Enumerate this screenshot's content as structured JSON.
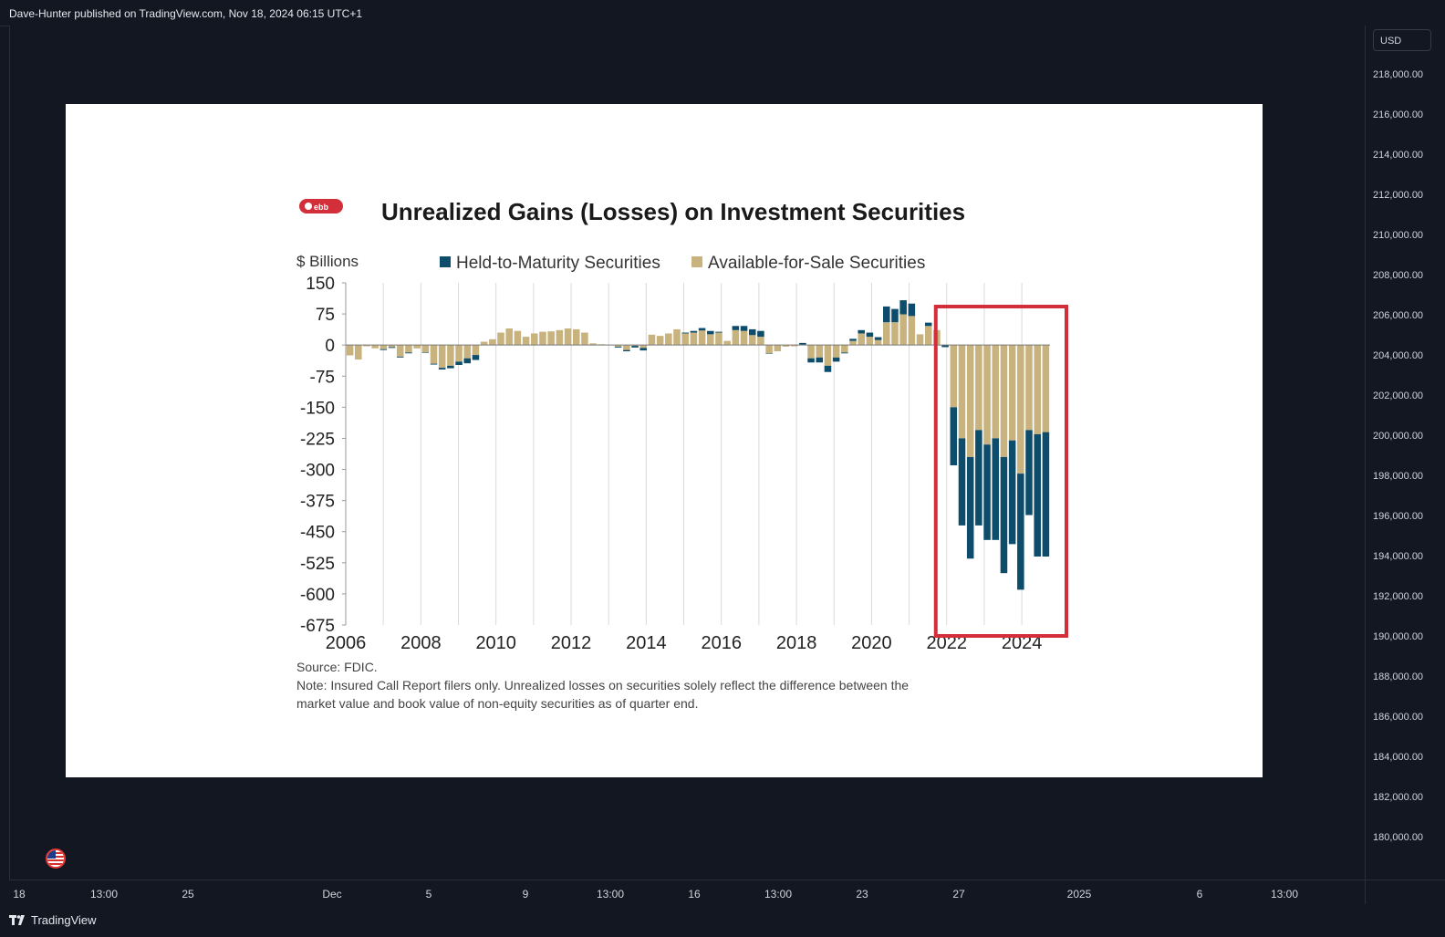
{
  "header": {
    "publish_text": "Dave-Hunter published on TradingView.com, Nov 18, 2024 06:15 UTC+1"
  },
  "price_axis": {
    "currency": "USD",
    "labels": [
      "218,000.00",
      "216,000.00",
      "214,000.00",
      "212,000.00",
      "210,000.00",
      "208,000.00",
      "206,000.00",
      "204,000.00",
      "202,000.00",
      "200,000.00",
      "198,000.00",
      "196,000.00",
      "194,000.00",
      "192,000.00",
      "190,000.00",
      "188,000.00",
      "186,000.00",
      "184,000.00",
      "182,000.00",
      "180,000.00"
    ]
  },
  "time_axis": {
    "labels": [
      "18",
      "13:00",
      "25",
      "Dec",
      "5",
      "9",
      "13:00",
      "16",
      "13:00",
      "23",
      "27",
      "2025",
      "6",
      "13:00"
    ]
  },
  "footer": {
    "brand": "TradingView"
  },
  "colors": {
    "background": "#131722",
    "htm": "#0d4d6b",
    "afs": "#c8b37e",
    "highlight": "#d32f3a"
  },
  "embedded_image": {
    "badge": "ebb",
    "source": "Source: FDIC.",
    "note_line1": "Note: Insured Call Report filers only. Unrealized losses on securities solely reflect the difference between the",
    "note_line2": "market value and book value of non-equity securities as of quarter end."
  },
  "chart_data": {
    "type": "bar",
    "stacked": true,
    "title": "Unrealized Gains (Losses) on Investment Securities",
    "ylabel": "$ Billions",
    "ylim": [
      -675,
      150
    ],
    "yticks": [
      150,
      75,
      0,
      -75,
      -150,
      -225,
      -300,
      -375,
      -450,
      -525,
      -600,
      -675
    ],
    "xticks": [
      "2006",
      "2008",
      "2010",
      "2012",
      "2014",
      "2016",
      "2018",
      "2020",
      "2022",
      "2024"
    ],
    "xrange": [
      2006,
      2024.75
    ],
    "legend_position": "top",
    "highlight_range": [
      2022,
      2024.75
    ],
    "series": [
      {
        "name": "Held-to-Maturity Securities",
        "values": [
          0,
          0,
          0,
          0,
          -2,
          -2,
          -2,
          -2,
          0,
          -1,
          -2,
          -4,
          -6,
          -8,
          -12,
          -12,
          0,
          0,
          0,
          0,
          0,
          0,
          0,
          0,
          0,
          0,
          0,
          0,
          0,
          0,
          0,
          0,
          -2,
          -3,
          -4,
          -6,
          0,
          0,
          0,
          0,
          2,
          4,
          6,
          8,
          2,
          0,
          10,
          12,
          14,
          14,
          -1,
          0,
          0,
          0,
          -4,
          -10,
          -12,
          -15,
          -10,
          -2,
          5,
          8,
          10,
          7,
          38,
          32,
          34,
          30,
          0,
          8,
          0,
          -5,
          -140,
          -210,
          -245,
          -230,
          -230,
          -245,
          -280,
          -250,
          -280,
          -205,
          -295,
          -300
        ]
      },
      {
        "name": "Available-for-Sale Securities",
        "values": [
          -25,
          -35,
          -3,
          -8,
          -10,
          -5,
          -28,
          -18,
          -8,
          -18,
          -45,
          -55,
          -50,
          -40,
          -32,
          -24,
          8,
          14,
          30,
          40,
          34,
          20,
          28,
          32,
          33,
          36,
          40,
          38,
          30,
          4,
          2,
          1,
          -4,
          -12,
          -2,
          -7,
          25,
          22,
          28,
          38,
          28,
          30,
          35,
          26,
          30,
          10,
          36,
          34,
          24,
          20,
          -20,
          -15,
          -4,
          -3,
          5,
          -32,
          -30,
          -50,
          -30,
          -18,
          10,
          28,
          20,
          12,
          55,
          55,
          74,
          70,
          26,
          46,
          36,
          0,
          -150,
          -225,
          -270,
          -205,
          -240,
          -225,
          -270,
          -230,
          -310,
          -205,
          -215,
          -210
        ]
      }
    ]
  }
}
